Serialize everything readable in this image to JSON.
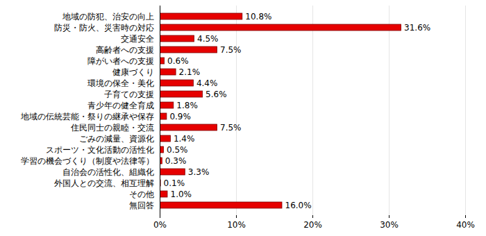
{
  "chart_data": {
    "type": "bar",
    "orientation": "horizontal",
    "categories": [
      "地域の防犯、治安の向上",
      "防災・防火、災害時の対応",
      "交通安全",
      "高齢者への支援",
      "障がい者への支援",
      "健康づくり",
      "環境の保全・美化",
      "子育ての支援",
      "青少年の健全育成",
      "地域の伝統芸能・祭りの継承や保存",
      "住民同士の親睦・交流",
      "ごみの減量、資源化",
      "スポーツ・文化活動の活性化",
      "学習の機会づくり（制度や法律等）",
      "自治会の活性化、組織化",
      "外国人との交流、相互理解",
      "その他",
      "無回答"
    ],
    "values": [
      10.8,
      31.6,
      4.5,
      7.5,
      0.6,
      2.1,
      4.4,
      5.6,
      1.8,
      0.9,
      7.5,
      1.4,
      0.5,
      0.3,
      3.3,
      0.1,
      1.0,
      16.0
    ],
    "value_labels": [
      "10.8%",
      "31.6%",
      "4.5%",
      "7.5%",
      "0.6%",
      "2.1%",
      "4.4%",
      "5.6%",
      "1.8%",
      "0.9%",
      "7.5%",
      "1.4%",
      "0.5%",
      "0.3%",
      "3.3%",
      "0.1%",
      "1.0%",
      "16.0%"
    ],
    "color": "#e60000",
    "xlim": [
      0,
      40
    ],
    "xticks": [
      {
        "value": 0,
        "label": "0%"
      },
      {
        "value": 10,
        "label": "10%"
      },
      {
        "value": 20,
        "label": "20%"
      },
      {
        "value": 30,
        "label": "30%"
      },
      {
        "value": 40,
        "label": "40%"
      }
    ],
    "grid": true,
    "data_labels": true
  }
}
